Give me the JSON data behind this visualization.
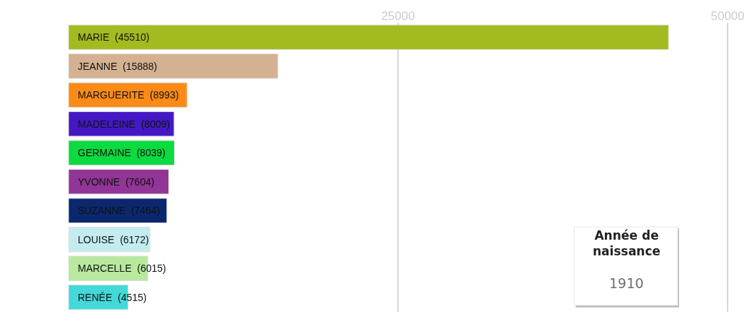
{
  "chart_data": {
    "type": "bar",
    "orientation": "horizontal",
    "categories": [
      "MARIE",
      "JEANNE",
      "MARGUERITE",
      "MADELEINE",
      "GERMAINE",
      "YVONNE",
      "SUZANNE",
      "LOUISE",
      "MARCELLE",
      "RENÉE"
    ],
    "values": [
      45510,
      15888,
      8993,
      8009,
      8039,
      7604,
      7464,
      6172,
      6015,
      4515
    ],
    "value_labels": [
      "(45510)",
      "(15888)",
      "(8993)",
      "(8009)",
      "(8039)",
      "(7604)",
      "(7464)",
      "(6172)",
      "(6015)",
      "(4515)"
    ],
    "colors": [
      "#a3bb1e",
      "#d4b191",
      "#fb8b16",
      "#4418c4",
      "#0bdb40",
      "#913596",
      "#0b286e",
      "#c4ecf0",
      "#b8e99f",
      "#44d8d9"
    ],
    "xlim": [
      0,
      51400
    ],
    "xticks": [
      25000,
      50000
    ],
    "grid": "x",
    "tick_labels": "x",
    "annotations": [
      "Année de naissance",
      "1910"
    ]
  }
}
